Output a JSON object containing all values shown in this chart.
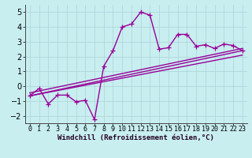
{
  "background_color": "#c8eef0",
  "grid_color": "#b0d8dc",
  "line_color": "#990099",
  "marker": "+",
  "markersize": 4,
  "linewidth": 1.0,
  "xlabel": "Windchill (Refroidissement éolien,°C)",
  "xlabel_fontsize": 6.5,
  "ylabel_fontsize": 7,
  "tick_fontsize": 6,
  "xlim": [
    -0.5,
    23.5
  ],
  "ylim": [
    -2.5,
    5.5
  ],
  "yticks": [
    -2,
    -1,
    0,
    1,
    2,
    3,
    4,
    5
  ],
  "xticks": [
    0,
    1,
    2,
    3,
    4,
    5,
    6,
    7,
    8,
    9,
    10,
    11,
    12,
    13,
    14,
    15,
    16,
    17,
    18,
    19,
    20,
    21,
    22,
    23
  ],
  "series1_x": [
    0,
    1,
    2,
    3,
    4,
    5,
    6,
    7,
    8,
    9,
    10,
    11,
    12,
    13,
    14,
    15,
    16,
    17,
    18,
    19,
    20,
    21,
    22,
    23
  ],
  "series1_y": [
    -0.65,
    -0.15,
    -1.2,
    -0.6,
    -0.6,
    -1.05,
    -0.95,
    -2.25,
    1.35,
    2.4,
    4.0,
    4.2,
    5.0,
    4.8,
    2.5,
    2.6,
    3.5,
    3.5,
    2.7,
    2.8,
    2.55,
    2.85,
    2.75,
    2.4
  ],
  "series2_x": [
    0,
    23
  ],
  "series2_y": [
    -0.65,
    2.4
  ],
  "series3_x": [
    0,
    23
  ],
  "series3_y": [
    -0.65,
    2.1
  ],
  "series4_x": [
    0,
    23
  ],
  "series4_y": [
    -0.45,
    2.55
  ]
}
